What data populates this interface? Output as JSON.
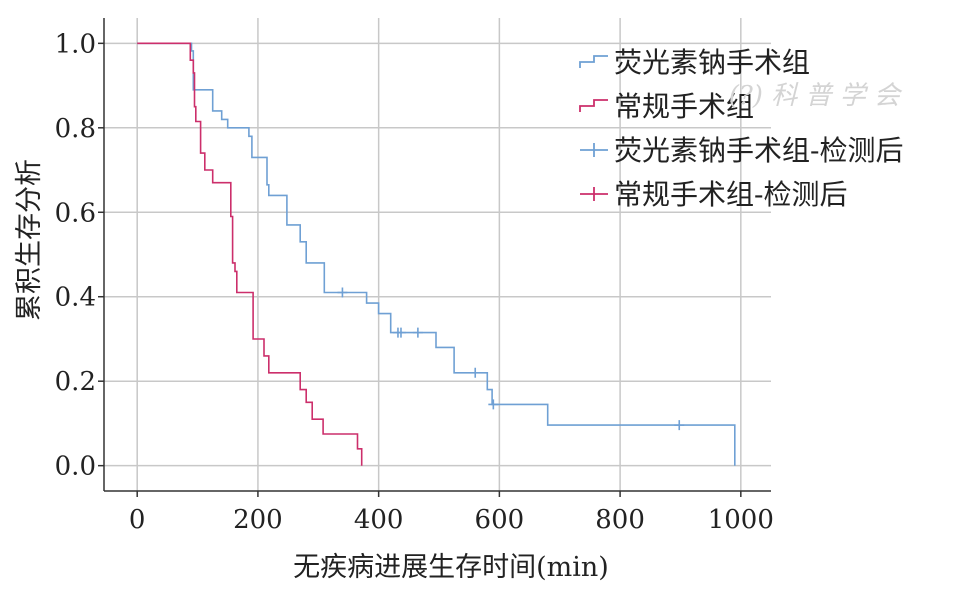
{
  "chart_data": {
    "type": "line",
    "subtype": "kaplan-meier-step",
    "title": "",
    "xlabel": "无疾病进展生存时间(min)",
    "ylabel": "累积生存分析",
    "xlim": [
      -55,
      1050
    ],
    "ylim": [
      -0.06,
      1.06
    ],
    "xticks": [
      0,
      200,
      400,
      600,
      800,
      1000
    ],
    "xtick_labels": [
      "0",
      "200",
      "400",
      "600",
      "800",
      "1000"
    ],
    "yticks": [
      0.0,
      0.2,
      0.4,
      0.6,
      0.8,
      1.0
    ],
    "ytick_labels": [
      "0.0",
      "0.2",
      "0.4",
      "0.6",
      "0.8",
      "1.0"
    ],
    "grid": true,
    "legend_position": "top-right",
    "watermark": "(?) 科 普 学 会",
    "series": [
      {
        "name": "荧光素钠手术组",
        "color": "#6fa0d4",
        "steps": [
          [
            0,
            1.0
          ],
          [
            90,
            1.0
          ],
          [
            90,
            0.982
          ],
          [
            93,
            0.982
          ],
          [
            93,
            0.89
          ],
          [
            125,
            0.89
          ],
          [
            125,
            0.84
          ],
          [
            140,
            0.84
          ],
          [
            140,
            0.82
          ],
          [
            150,
            0.82
          ],
          [
            150,
            0.8
          ],
          [
            185,
            0.8
          ],
          [
            185,
            0.78
          ],
          [
            190,
            0.78
          ],
          [
            190,
            0.73
          ],
          [
            215,
            0.73
          ],
          [
            215,
            0.665
          ],
          [
            218,
            0.665
          ],
          [
            218,
            0.64
          ],
          [
            248,
            0.64
          ],
          [
            248,
            0.57
          ],
          [
            270,
            0.57
          ],
          [
            270,
            0.53
          ],
          [
            280,
            0.53
          ],
          [
            280,
            0.48
          ],
          [
            310,
            0.48
          ],
          [
            310,
            0.41
          ],
          [
            380,
            0.41
          ],
          [
            380,
            0.385
          ],
          [
            400,
            0.385
          ],
          [
            400,
            0.36
          ],
          [
            420,
            0.36
          ],
          [
            420,
            0.315
          ],
          [
            495,
            0.315
          ],
          [
            495,
            0.28
          ],
          [
            525,
            0.28
          ],
          [
            525,
            0.22
          ],
          [
            580,
            0.22
          ],
          [
            580,
            0.18
          ],
          [
            588,
            0.18
          ],
          [
            588,
            0.145
          ],
          [
            680,
            0.145
          ],
          [
            680,
            0.096
          ],
          [
            990,
            0.096
          ],
          [
            990,
            0.0
          ]
        ],
        "censored": [
          [
            340,
            0.41
          ],
          [
            432,
            0.315
          ],
          [
            437,
            0.315
          ],
          [
            465,
            0.315
          ],
          [
            560,
            0.22
          ],
          [
            590,
            0.145
          ],
          [
            898,
            0.096
          ]
        ]
      },
      {
        "name": "常规手术组",
        "color": "#cc2f6b",
        "steps": [
          [
            0,
            1.0
          ],
          [
            88,
            1.0
          ],
          [
            88,
            0.96
          ],
          [
            93,
            0.96
          ],
          [
            93,
            0.93
          ],
          [
            95,
            0.93
          ],
          [
            95,
            0.85
          ],
          [
            97,
            0.85
          ],
          [
            97,
            0.815
          ],
          [
            105,
            0.815
          ],
          [
            105,
            0.74
          ],
          [
            112,
            0.74
          ],
          [
            112,
            0.7
          ],
          [
            125,
            0.7
          ],
          [
            125,
            0.67
          ],
          [
            155,
            0.67
          ],
          [
            155,
            0.59
          ],
          [
            158,
            0.59
          ],
          [
            158,
            0.48
          ],
          [
            162,
            0.48
          ],
          [
            162,
            0.46
          ],
          [
            165,
            0.46
          ],
          [
            165,
            0.41
          ],
          [
            192,
            0.41
          ],
          [
            192,
            0.3
          ],
          [
            210,
            0.3
          ],
          [
            210,
            0.26
          ],
          [
            218,
            0.26
          ],
          [
            218,
            0.22
          ],
          [
            270,
            0.22
          ],
          [
            270,
            0.18
          ],
          [
            280,
            0.18
          ],
          [
            280,
            0.15
          ],
          [
            290,
            0.15
          ],
          [
            290,
            0.11
          ],
          [
            308,
            0.11
          ],
          [
            308,
            0.075
          ],
          [
            365,
            0.075
          ],
          [
            365,
            0.04
          ],
          [
            372,
            0.04
          ],
          [
            372,
            0.0
          ]
        ],
        "censored": []
      },
      {
        "name": "荧光素钠手术组-检测后",
        "color": "#6fa0d4",
        "legend_marker": "plus"
      },
      {
        "name": "常规手术组-检测后",
        "color": "#cc2f6b",
        "legend_marker": "plus"
      }
    ]
  }
}
